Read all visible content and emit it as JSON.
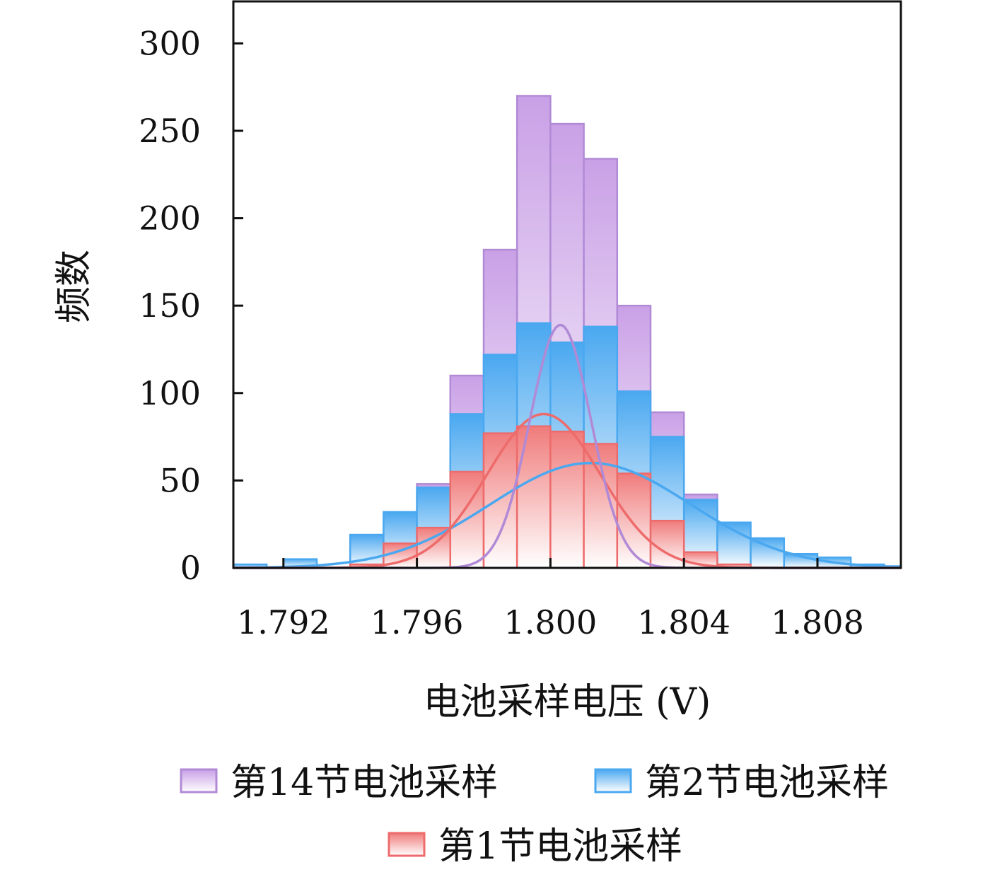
{
  "chart_data": {
    "type": "bar",
    "xlabel": "电池采样电压 (V)",
    "ylabel": "频数",
    "xlim": [
      1.7905,
      1.8105
    ],
    "ylim": [
      0,
      324
    ],
    "xticks": [
      1.792,
      1.796,
      1.8,
      1.804,
      1.808
    ],
    "xtick_labels": [
      "1.792",
      "1.796",
      "1.800",
      "1.804",
      "1.808"
    ],
    "yticks": [
      0,
      50,
      100,
      150,
      200,
      250,
      300
    ],
    "ytick_labels": [
      "0",
      "50",
      "100",
      "150",
      "200",
      "250",
      "300"
    ],
    "bin_width": 0.001,
    "legend_position": "bottom",
    "series": [
      {
        "name": "第14节电池采样",
        "color": "#c9a0e6",
        "edge": "#b18ad6",
        "bins": [
          {
            "x0": 1.797,
            "value": 110
          },
          {
            "x0": 1.798,
            "value": 182
          },
          {
            "x0": 1.799,
            "value": 270
          },
          {
            "x0": 1.8,
            "value": 254
          },
          {
            "x0": 1.801,
            "value": 234
          },
          {
            "x0": 1.802,
            "value": 150
          },
          {
            "x0": 1.803,
            "value": 89
          },
          {
            "x0": 1.804,
            "value": 42
          },
          {
            "x0": 1.796,
            "value": 48
          }
        ],
        "fit": {
          "mean": 1.8003,
          "sd": 0.00092,
          "peak": 139
        }
      },
      {
        "name": "第2节电池采样",
        "color": "#4aa8f0",
        "edge": "#4aa8f0",
        "bins": [
          {
            "x0": 1.7905,
            "value": 2
          },
          {
            "x0": 1.792,
            "value": 5
          },
          {
            "x0": 1.794,
            "value": 19
          },
          {
            "x0": 1.795,
            "value": 32
          },
          {
            "x0": 1.796,
            "value": 46
          },
          {
            "x0": 1.797,
            "value": 88
          },
          {
            "x0": 1.798,
            "value": 122
          },
          {
            "x0": 1.799,
            "value": 140
          },
          {
            "x0": 1.8,
            "value": 129
          },
          {
            "x0": 1.801,
            "value": 138
          },
          {
            "x0": 1.802,
            "value": 101
          },
          {
            "x0": 1.803,
            "value": 75
          },
          {
            "x0": 1.804,
            "value": 39
          },
          {
            "x0": 1.805,
            "value": 26
          },
          {
            "x0": 1.806,
            "value": 17
          },
          {
            "x0": 1.807,
            "value": 8
          },
          {
            "x0": 1.808,
            "value": 6
          },
          {
            "x0": 1.809,
            "value": 2
          },
          {
            "x0": 1.81,
            "value": 1
          }
        ],
        "fit": {
          "mean": 1.8012,
          "sd": 0.003,
          "peak": 60
        }
      },
      {
        "name": "第1节电池采样",
        "color": "#f07b7b",
        "edge": "#ee6b6b",
        "bins": [
          {
            "x0": 1.794,
            "value": 2
          },
          {
            "x0": 1.795,
            "value": 14
          },
          {
            "x0": 1.796,
            "value": 23
          },
          {
            "x0": 1.797,
            "value": 55
          },
          {
            "x0": 1.798,
            "value": 77
          },
          {
            "x0": 1.799,
            "value": 81
          },
          {
            "x0": 1.8,
            "value": 78
          },
          {
            "x0": 1.801,
            "value": 71
          },
          {
            "x0": 1.802,
            "value": 54
          },
          {
            "x0": 1.803,
            "value": 27
          },
          {
            "x0": 1.804,
            "value": 9
          },
          {
            "x0": 1.805,
            "value": 2
          }
        ],
        "fit": {
          "mean": 1.7998,
          "sd": 0.0017,
          "peak": 88
        }
      }
    ]
  }
}
